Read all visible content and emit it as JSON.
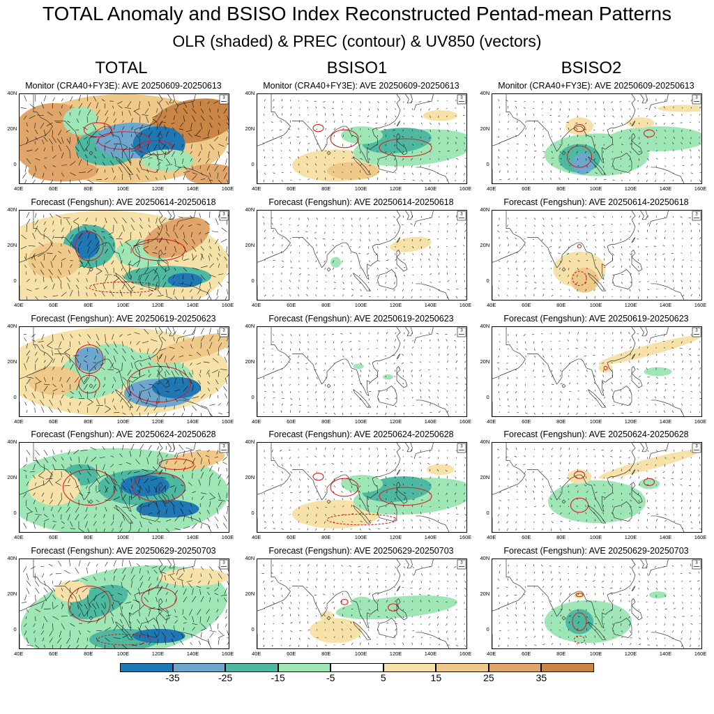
{
  "title": "TOTAL Anomaly and BSISO Index Reconstructed Pentad-mean Patterns",
  "subtitle": "OLR (shaded) & PREC (contour) & UV850 (vectors)",
  "columns": [
    "TOTAL",
    "BSISO1",
    "BSISO2"
  ],
  "rows": [
    "Monitor (CRA40+FY3E): AVE 20250609-20250613",
    "Forecast (Fengshun): AVE 20250614-20250618",
    "Forecast (Fengshun): AVE 20250619-20250623",
    "Forecast (Fengshun): AVE 20250624-20250628",
    "Forecast (Fengshun): AVE 20250629-20250703"
  ],
  "xticks": [
    "40E",
    "60E",
    "80E",
    "100E",
    "120E",
    "140E",
    "160E"
  ],
  "yticks": [
    "40N",
    "20N",
    "0"
  ],
  "ref_vector": "3",
  "colorbar": {
    "labels": [
      "-35",
      "-25",
      "-15",
      "-5",
      "5",
      "15",
      "25",
      "35"
    ],
    "colors": [
      "#1f77b4",
      "#6ea6cd",
      "#4fb8a0",
      "#9ee6b5",
      "#ffffff",
      "#f6e2a8",
      "#efc98a",
      "#e0a56a",
      "#c88545"
    ]
  },
  "chart_data": {
    "type": "heatmap",
    "field": "OLR anomaly (shaded), PREC (contour), UV850 (vectors)",
    "lon_range": [
      40,
      160
    ],
    "lat_range": [
      -10,
      40
    ],
    "levels": [
      -35,
      -25,
      -15,
      -5,
      5,
      15,
      25,
      35
    ],
    "panels_approx": [
      {
        "row": 1,
        "col": "TOTAL",
        "pattern": "strong negative OLR over Bay of Bengal to Philippines (-15 to -35), positive over Arabian Sea / Indian Ocean"
      },
      {
        "row": 1,
        "col": "BSISO1",
        "pattern": "negative over South China Sea / western Pacific 10-20N, positive equatorial Indian Ocean"
      },
      {
        "row": 1,
        "col": "BSISO2",
        "pattern": "negative over Bay of Bengal / Indo-China 0-15N, positive north of 20N"
      },
      {
        "row": 2,
        "col": "BSISO1",
        "pattern": "weak positive near 20N 120-140E"
      },
      {
        "row": 2,
        "col": "BSISO2",
        "pattern": "positive over Bay of Bengal"
      },
      {
        "row": 3,
        "col": "BSISO2",
        "pattern": "positive band 20-30N east of 120E, weak negative 15N"
      },
      {
        "row": 4,
        "col": "BSISO1",
        "pattern": "negative 10-20N 80-150E, positive equatorial Indian Ocean"
      },
      {
        "row": 4,
        "col": "BSISO2",
        "pattern": "negative 0-15N 80-130E, positive 20-30N"
      },
      {
        "row": 5,
        "col": "BSISO1",
        "pattern": "negative 15N 85-150E, positive 0N 75-100E"
      },
      {
        "row": 5,
        "col": "BSISO2",
        "pattern": "negative 0-15N 80-100E"
      }
    ]
  }
}
